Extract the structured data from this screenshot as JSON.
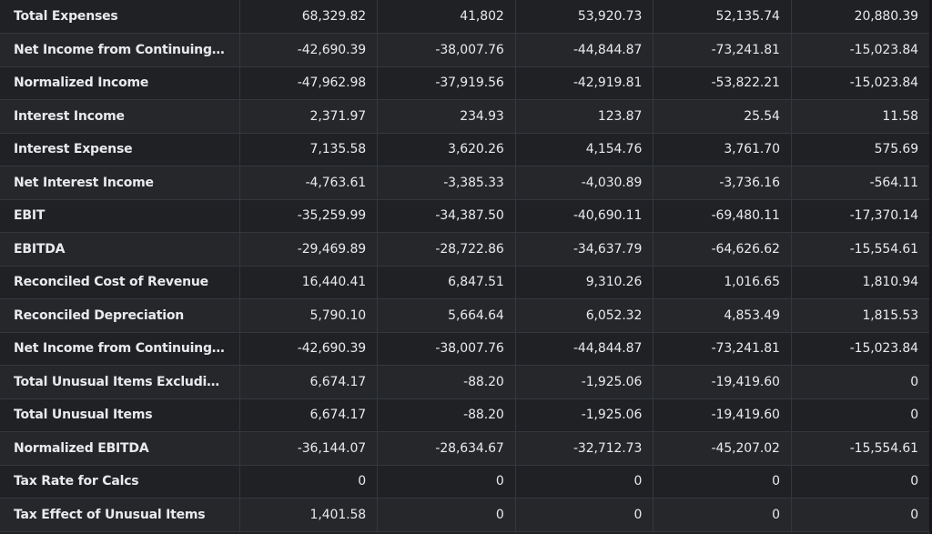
{
  "table": {
    "rows": [
      {
        "label": "Total Expenses",
        "values": [
          "68,329.82",
          "41,802",
          "53,920.73",
          "52,135.74",
          "20,880.39"
        ]
      },
      {
        "label": "Net Income from Continuing & D...",
        "values": [
          "-42,690.39",
          "-38,007.76",
          "-44,844.87",
          "-73,241.81",
          "-15,023.84"
        ]
      },
      {
        "label": "Normalized Income",
        "values": [
          "-47,962.98",
          "-37,919.56",
          "-42,919.81",
          "-53,822.21",
          "-15,023.84"
        ]
      },
      {
        "label": "Interest Income",
        "values": [
          "2,371.97",
          "234.93",
          "123.87",
          "25.54",
          "11.58"
        ]
      },
      {
        "label": "Interest Expense",
        "values": [
          "7,135.58",
          "3,620.26",
          "4,154.76",
          "3,761.70",
          "575.69"
        ]
      },
      {
        "label": "Net Interest Income",
        "values": [
          "-4,763.61",
          "-3,385.33",
          "-4,030.89",
          "-3,736.16",
          "-564.11"
        ]
      },
      {
        "label": "EBIT",
        "values": [
          "-35,259.99",
          "-34,387.50",
          "-40,690.11",
          "-69,480.11",
          "-17,370.14"
        ]
      },
      {
        "label": "EBITDA",
        "values": [
          "-29,469.89",
          "-28,722.86",
          "-34,637.79",
          "-64,626.62",
          "-15,554.61"
        ]
      },
      {
        "label": "Reconciled Cost of Revenue",
        "values": [
          "16,440.41",
          "6,847.51",
          "9,310.26",
          "1,016.65",
          "1,810.94"
        ]
      },
      {
        "label": "Reconciled Depreciation",
        "values": [
          "5,790.10",
          "5,664.64",
          "6,052.32",
          "4,853.49",
          "1,815.53"
        ]
      },
      {
        "label": "Net Income from Continuing Op...",
        "values": [
          "-42,690.39",
          "-38,007.76",
          "-44,844.87",
          "-73,241.81",
          "-15,023.84"
        ]
      },
      {
        "label": "Total Unusual Items Excluding G...",
        "values": [
          "6,674.17",
          "-88.20",
          "-1,925.06",
          "-19,419.60",
          "0"
        ]
      },
      {
        "label": "Total Unusual Items",
        "values": [
          "6,674.17",
          "-88.20",
          "-1,925.06",
          "-19,419.60",
          "0"
        ]
      },
      {
        "label": "Normalized EBITDA",
        "values": [
          "-36,144.07",
          "-28,634.67",
          "-32,712.73",
          "-45,207.02",
          "-15,554.61"
        ]
      },
      {
        "label": "Tax Rate for Calcs",
        "values": [
          "0",
          "0",
          "0",
          "0",
          "0"
        ]
      },
      {
        "label": "Tax Effect of Unusual Items",
        "values": [
          "1,401.58",
          "0",
          "0",
          "0",
          "0"
        ]
      }
    ]
  }
}
